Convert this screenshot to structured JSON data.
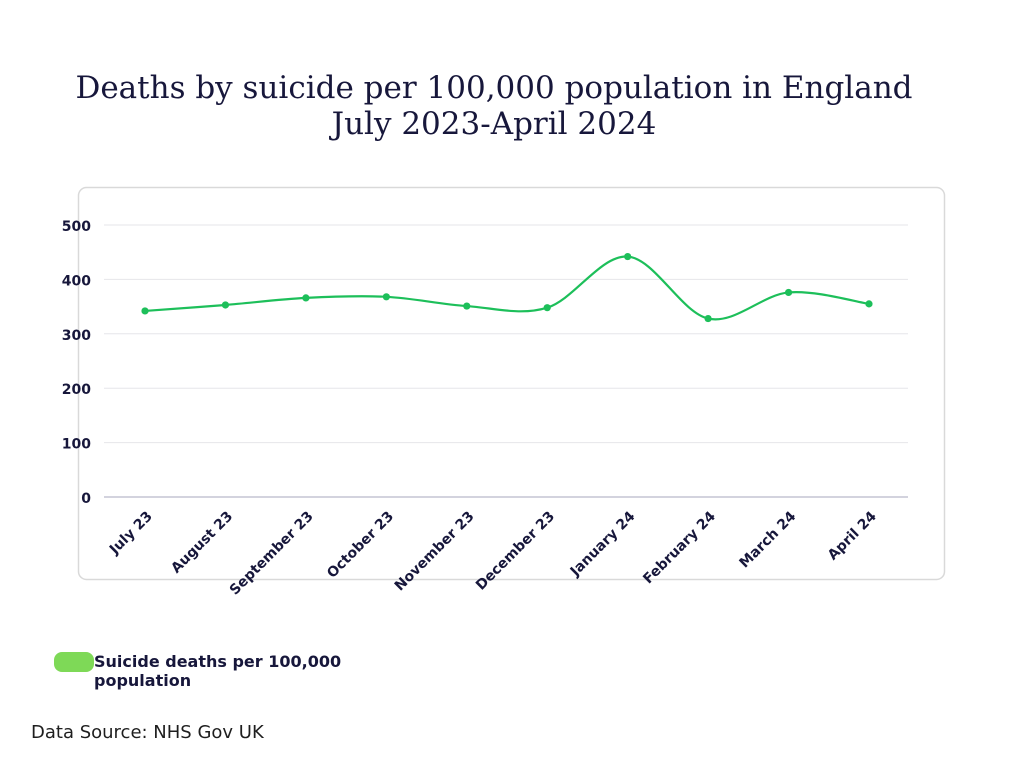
{
  "chart_data": {
    "type": "line",
    "title": "Deaths by suicide per 100,000 population in England",
    "subtitle": "July 2023-April 2024",
    "categories": [
      "July 23",
      "August 23",
      "September 23",
      "October 23",
      "November 23",
      "December 23",
      "January 24",
      "February 24",
      "March 24",
      "April 24"
    ],
    "series": [
      {
        "name": "Suicide deaths per 100,000 population",
        "values": [
          342,
          353,
          366,
          368,
          351,
          348,
          442,
          328,
          376,
          355
        ],
        "color": "#1dbf5a"
      }
    ],
    "yticks": [
      0,
      100,
      200,
      300,
      400,
      500
    ],
    "ylim": [
      0,
      500
    ],
    "grid": true,
    "smooth": true,
    "legend_position": "bottom-left",
    "legend_color": "#7ed957"
  },
  "source": "Data Source: NHS Gov UK"
}
